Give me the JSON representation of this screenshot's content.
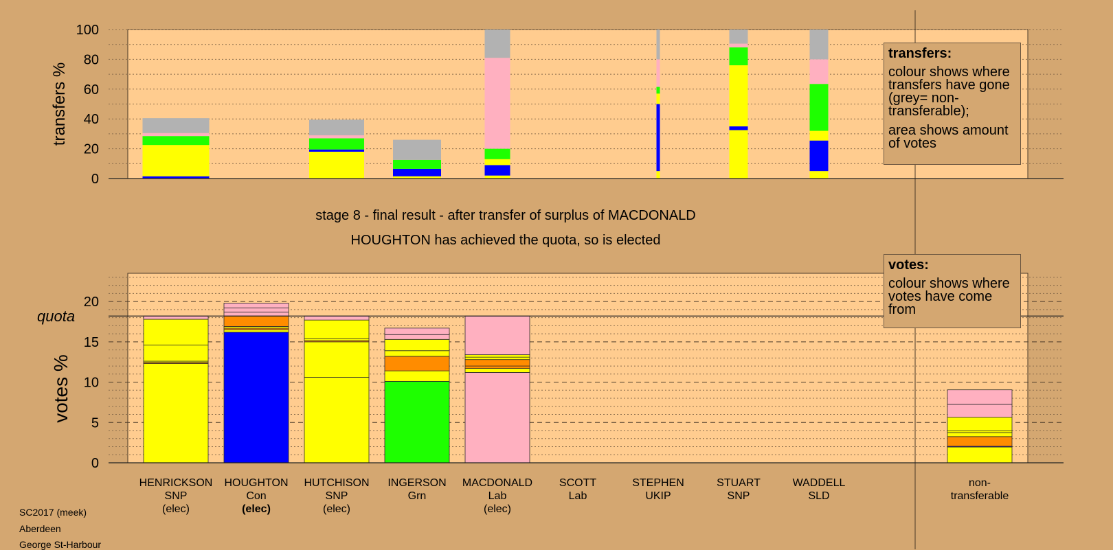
{
  "colors": {
    "background": "#d4a771",
    "plot_bg": "#ffcc8f",
    "SNP": "#ffff00",
    "Con": "#0000ff",
    "Grn": "#1eff00",
    "Lab": "#ffb0c0",
    "UKIP": "#ff8c00",
    "LD": "#ff8c00",
    "nontransferable": "#b2b2b2"
  },
  "header": {
    "stage_text": "stage 8 - final result - after transfer of surplus of MACDONALD",
    "status_text": "HOUGHTON has achieved the quota, so is elected"
  },
  "legend_transfers": {
    "title": "transfers:",
    "text1": "colour shows where transfers have gone (grey= non-transferable);",
    "text2": "area shows amount of votes"
  },
  "legend_votes": {
    "title": "votes:",
    "text1": "colour shows where votes have come from"
  },
  "footer": {
    "line1": "SC2017 (meek)",
    "line2": "Aberdeen",
    "line3": "George St-Harbour"
  },
  "chart_data": [
    {
      "type": "bar",
      "stacked": true,
      "ylabel": "transfers %",
      "ylim": [
        0,
        100
      ],
      "yticks": [
        0,
        20,
        40,
        60,
        80,
        100
      ],
      "grid": "dotted",
      "legend": "top-right",
      "transfers": [
        {
          "name": "HENRICKSON",
          "segments": [
            {
              "party": "Con",
              "value": 1.5
            },
            {
              "party": "SNP",
              "value": 21
            },
            {
              "party": "Grn",
              "value": 6
            },
            {
              "party": "Lab",
              "value": 2
            },
            {
              "party": "nontransferable",
              "value": 10
            }
          ]
        },
        {
          "name": "HUTCHISON",
          "segments": [
            {
              "party": "SNP",
              "value": 18
            },
            {
              "party": "Con",
              "value": 1.5
            },
            {
              "party": "Grn",
              "value": 7.5
            },
            {
              "party": "Lab",
              "value": 2
            },
            {
              "party": "nontransferable",
              "value": 10.5
            }
          ]
        },
        {
          "name": "INGERSON",
          "segments": [
            {
              "party": "SNP",
              "value": 1.5
            },
            {
              "party": "Con",
              "value": 5
            },
            {
              "party": "Grn",
              "value": 6
            },
            {
              "party": "nontransferable",
              "value": 13.5
            }
          ]
        },
        {
          "name": "MACDONALD",
          "segments": [
            {
              "party": "SNP",
              "value": 2
            },
            {
              "party": "Con",
              "value": 7
            },
            {
              "party": "SNP",
              "value": 4
            },
            {
              "party": "Grn",
              "value": 7
            },
            {
              "party": "Lab",
              "value": 61
            },
            {
              "party": "nontransferable",
              "value": 19
            }
          ]
        },
        {
          "name": "STEPHEN",
          "segments": [
            {
              "party": "SNP",
              "value": 5
            },
            {
              "party": "Con",
              "value": 45
            },
            {
              "party": "SNP",
              "value": 7
            },
            {
              "party": "Grn",
              "value": 4.5
            },
            {
              "party": "Lab",
              "value": 18.5
            },
            {
              "party": "nontransferable",
              "value": 20
            }
          ]
        },
        {
          "name": "STUART",
          "segments": [
            {
              "party": "SNP",
              "value": 32.5
            },
            {
              "party": "Con",
              "value": 2.5
            },
            {
              "party": "SNP",
              "value": 41
            },
            {
              "party": "Grn",
              "value": 12
            },
            {
              "party": "Lab",
              "value": 2.5
            },
            {
              "party": "nontransferable",
              "value": 9.5
            }
          ]
        },
        {
          "name": "WADDELL",
          "segments": [
            {
              "party": "SNP",
              "value": 5
            },
            {
              "party": "Con",
              "value": 20.5
            },
            {
              "party": "SNP",
              "value": 6.5
            },
            {
              "party": "Grn",
              "value": 31.5
            },
            {
              "party": "Lab",
              "value": 16.5
            },
            {
              "party": "nontransferable",
              "value": 20
            }
          ]
        }
      ]
    },
    {
      "type": "bar",
      "stacked": true,
      "ylabel": "votes %",
      "ylim": [
        0,
        23.5
      ],
      "yticks": [
        0,
        5,
        10,
        15,
        20
      ],
      "quota": 18.2,
      "quota_label": "quota",
      "grid": "dashed",
      "legend": "top-right",
      "candidates": [
        {
          "name": "HENRICKSON",
          "party": "SNP",
          "status": "(elec)",
          "status_bold": false,
          "segments": [
            {
              "party": "SNP",
              "value": 12.3
            },
            {
              "party": "UKIP",
              "value": 0.15
            },
            {
              "party": "SNP",
              "value": 0.15
            },
            {
              "party": "SNP",
              "value": 2
            },
            {
              "party": "SNP",
              "value": 3.2
            },
            {
              "party": "Lab",
              "value": 0.4
            }
          ]
        },
        {
          "name": "HOUGHTON",
          "party": "Con",
          "status": "(elec)",
          "status_bold": true,
          "segments": [
            {
              "party": "Con",
              "value": 16.2
            },
            {
              "party": "SNP",
              "value": 0.3
            },
            {
              "party": "UKIP",
              "value": 0.2
            },
            {
              "party": "SNP",
              "value": 0.2
            },
            {
              "party": "UKIP",
              "value": 1.3
            },
            {
              "party": "Lab",
              "value": 0.5
            },
            {
              "party": "Lab",
              "value": 0.5
            },
            {
              "party": "Lab",
              "value": 0.6
            }
          ]
        },
        {
          "name": "HUTCHISON",
          "party": "SNP",
          "status": "(elec)",
          "status_bold": false,
          "segments": [
            {
              "party": "SNP",
              "value": 10.6
            },
            {
              "party": "SNP",
              "value": 4.4
            },
            {
              "party": "UKIP",
              "value": 0.15
            },
            {
              "party": "SNP",
              "value": 0.25
            },
            {
              "party": "SNP",
              "value": 2.3
            },
            {
              "party": "Lab",
              "value": 0.5
            }
          ]
        },
        {
          "name": "INGERSON",
          "party": "Grn",
          "status": "",
          "status_bold": false,
          "segments": [
            {
              "party": "Grn",
              "value": 10.1
            },
            {
              "party": "SNP",
              "value": 1.3
            },
            {
              "party": "UKIP",
              "value": 1.8
            },
            {
              "party": "SNP",
              "value": 0.7
            },
            {
              "party": "SNP",
              "value": 1.4
            },
            {
              "party": "Lab",
              "value": 0.6
            },
            {
              "party": "Lab",
              "value": 0.8
            }
          ]
        },
        {
          "name": "MACDONALD",
          "party": "Lab",
          "status": "(elec)",
          "status_bold": false,
          "segments": [
            {
              "party": "Lab",
              "value": 11.2
            },
            {
              "party": "SNP",
              "value": 0.5
            },
            {
              "party": "UKIP",
              "value": 0.3
            },
            {
              "party": "UKIP",
              "value": 0.8
            },
            {
              "party": "SNP",
              "value": 0.3
            },
            {
              "party": "SNP",
              "value": 0.3
            },
            {
              "party": "Lab",
              "value": 4.8
            }
          ]
        },
        {
          "name": "SCOTT",
          "party": "Lab",
          "status": "",
          "status_bold": false,
          "segments": []
        },
        {
          "name": "STEPHEN",
          "party": "UKIP",
          "status": "",
          "status_bold": false,
          "segments": []
        },
        {
          "name": "STUART",
          "party": "SNP",
          "status": "",
          "status_bold": false,
          "segments": []
        },
        {
          "name": "WADDELL",
          "party": "SLD",
          "status": "",
          "status_bold": false,
          "segments": []
        }
      ],
      "nontransferable": {
        "label1": "non-",
        "label2": "transferable",
        "segments": [
          {
            "party": "SNP",
            "value": 1.95
          },
          {
            "party": "Con",
            "value": 0.1
          },
          {
            "party": "UKIP",
            "value": 1.2
          },
          {
            "party": "SNP",
            "value": 0.5
          },
          {
            "party": "SNP",
            "value": 0.2
          },
          {
            "party": "SNP",
            "value": 1.7
          },
          {
            "party": "Lab",
            "value": 1.6
          },
          {
            "party": "Lab",
            "value": 1.8
          }
        ]
      }
    }
  ]
}
